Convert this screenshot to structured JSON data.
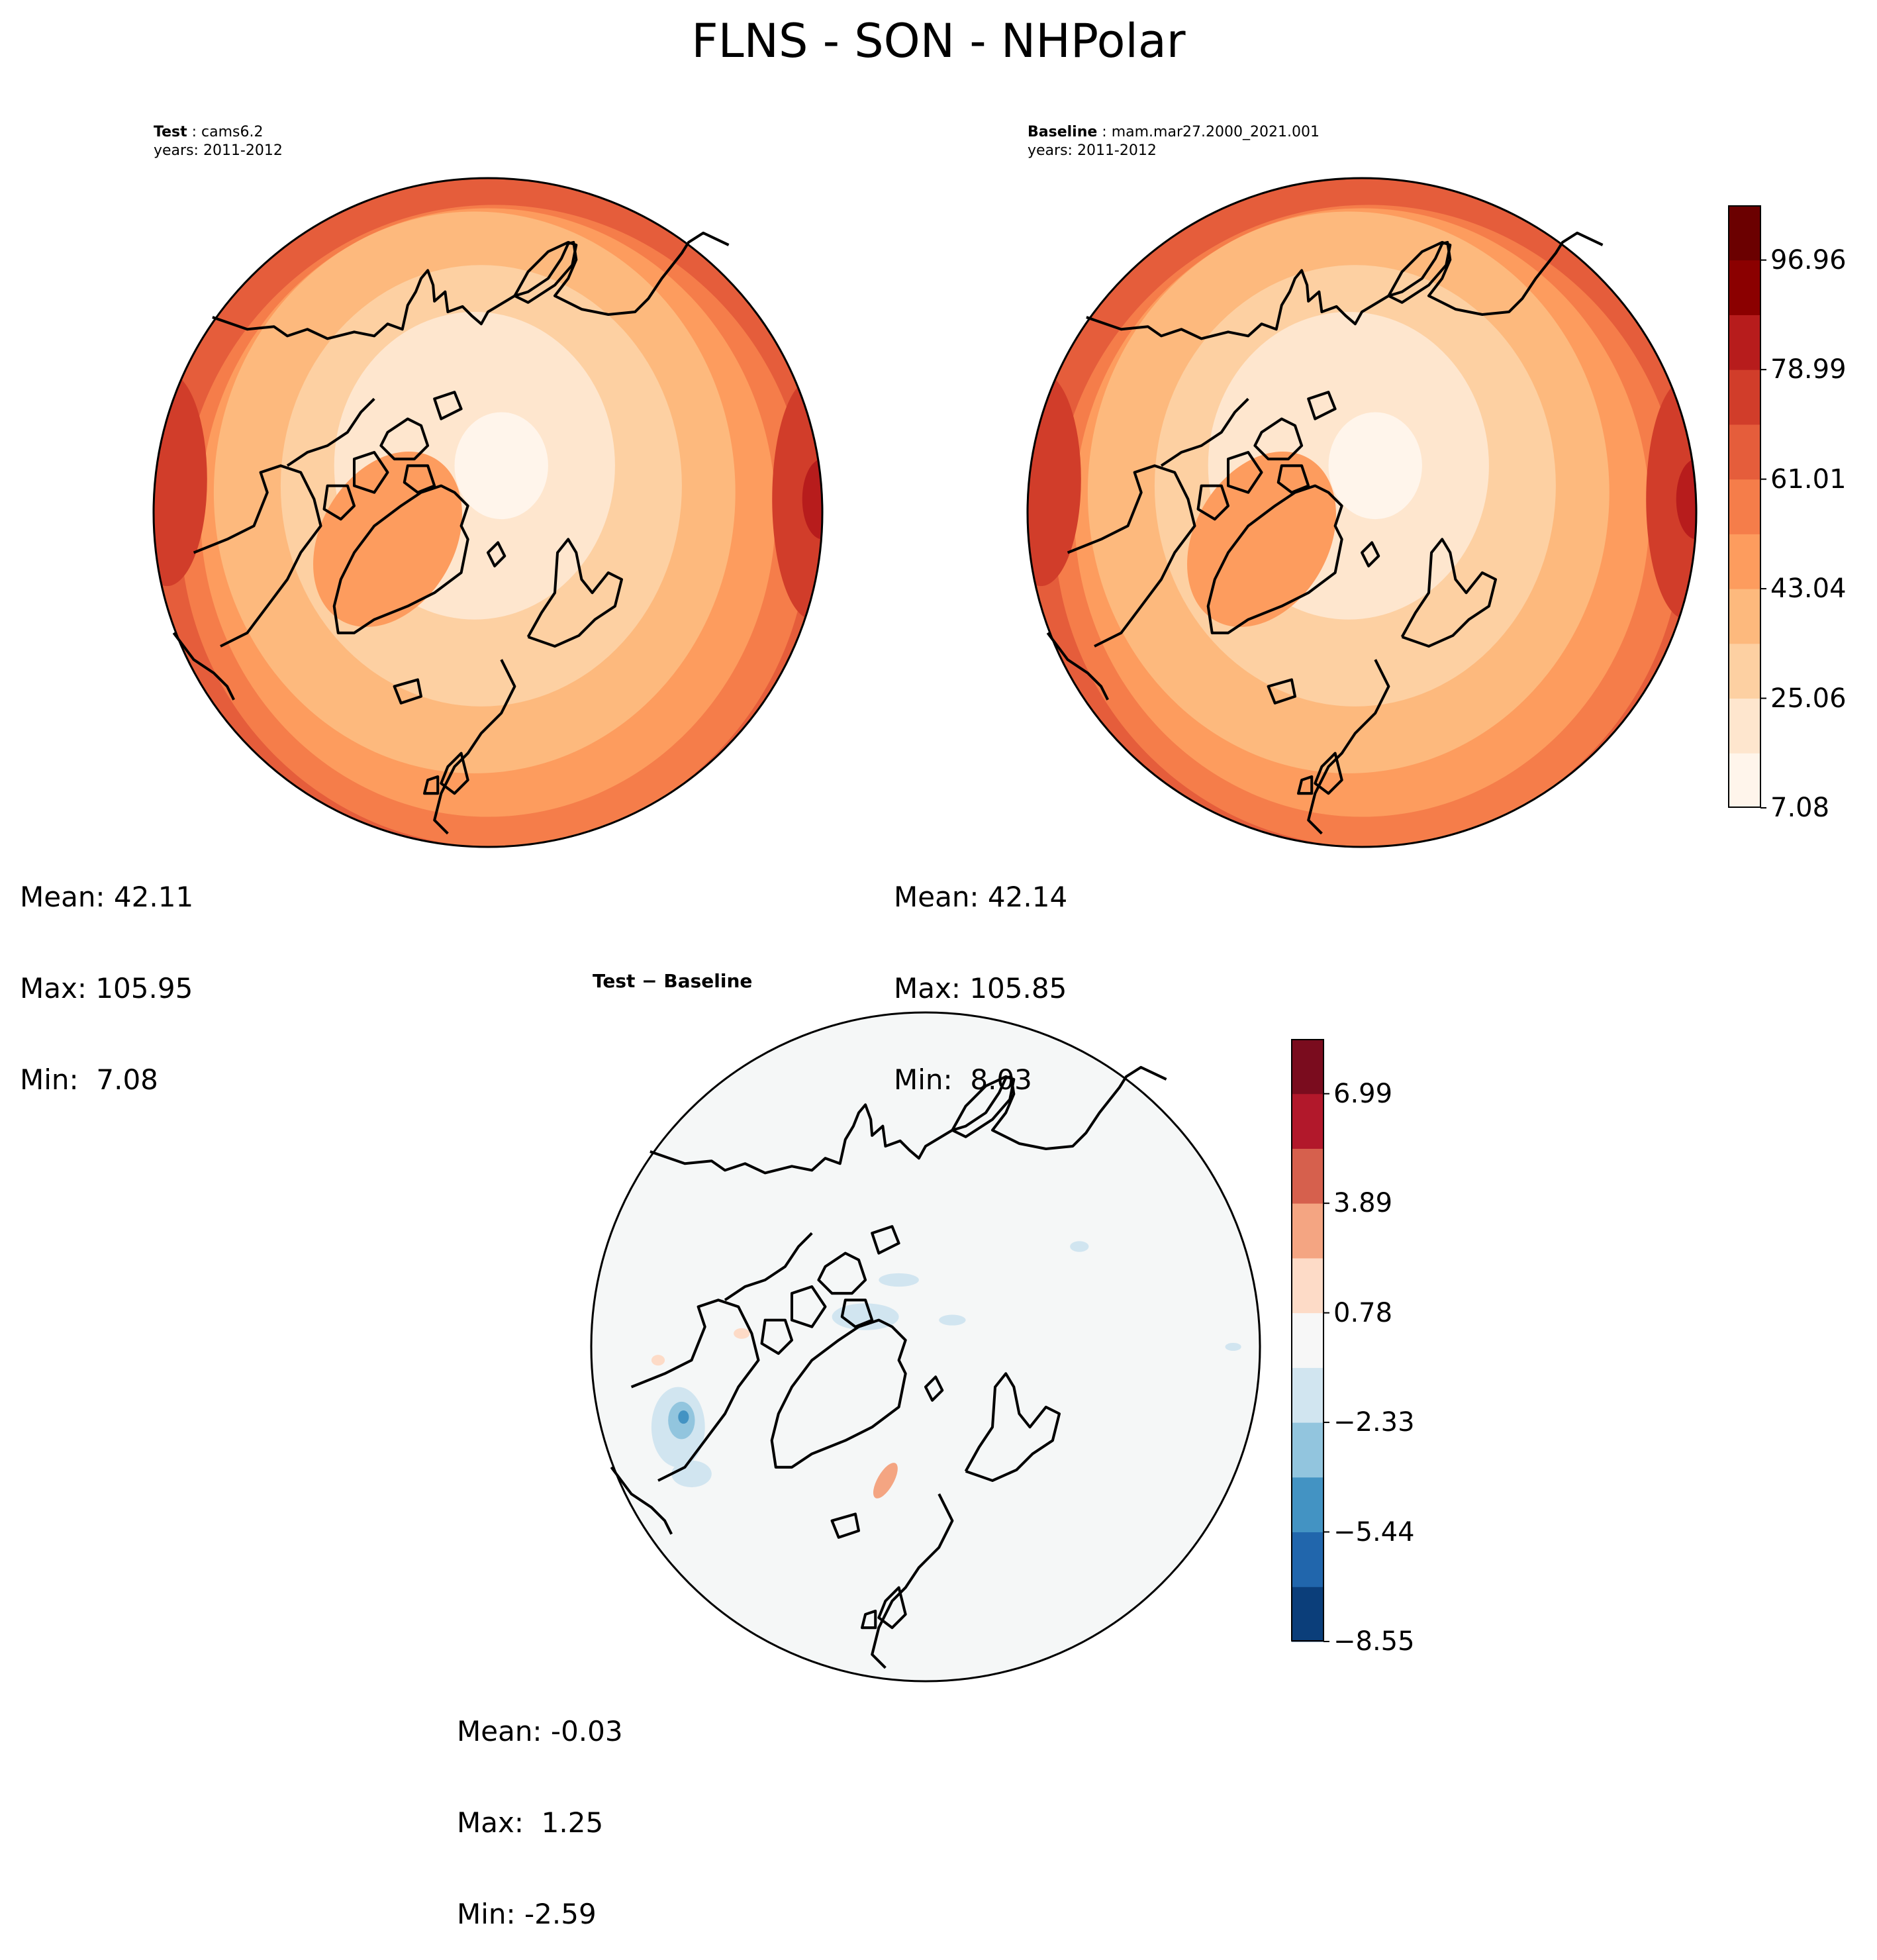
{
  "figure": {
    "title": "FLNS - SON - NHPolar"
  },
  "panels": [
    {
      "id": "test",
      "header_bold": "Test",
      "header_rest": " : cams6.2",
      "years": "years: 2011-2012",
      "stats": {
        "mean": "Mean: 42.11",
        "max": "Max: 105.95",
        "min": "Min:  7.08"
      }
    },
    {
      "id": "baseline",
      "header_bold": "Baseline",
      "header_rest": " : mam.mar27.2000_2021.001",
      "years": "years: 2011-2012",
      "stats": {
        "mean": "Mean: 42.14",
        "max": "Max: 105.85",
        "min": "Min:  8.03"
      }
    },
    {
      "id": "diff",
      "header_bold": "Test − Baseline",
      "header_rest": "",
      "years": "",
      "stats": {
        "mean": "Mean: -0.03",
        "max": "Max:  1.25",
        "min": "Min: -2.59"
      }
    }
  ],
  "colorbars": {
    "main": {
      "colors": [
        "#fff5eb",
        "#fee6ce",
        "#fdd0a2",
        "#fdb97d",
        "#fd9c5e",
        "#f57d4a",
        "#e55d3b",
        "#d13d2a",
        "#b71c1c",
        "#8b0000",
        "#6b0000"
      ],
      "tick_labels": [
        "7.08",
        "25.06",
        "43.04",
        "61.01",
        "78.99",
        "96.96"
      ]
    },
    "diff": {
      "colors": [
        "#0b3e7a",
        "#2166ac",
        "#4393c3",
        "#92c5de",
        "#d1e5f0",
        "#f7f7f7",
        "#fddbc7",
        "#f4a582",
        "#d6604d",
        "#b2182b",
        "#7a0c1e"
      ],
      "tick_labels": [
        "−8.55",
        "−5.44",
        "−2.33",
        "0.78",
        "3.89",
        "6.99"
      ]
    }
  }
}
